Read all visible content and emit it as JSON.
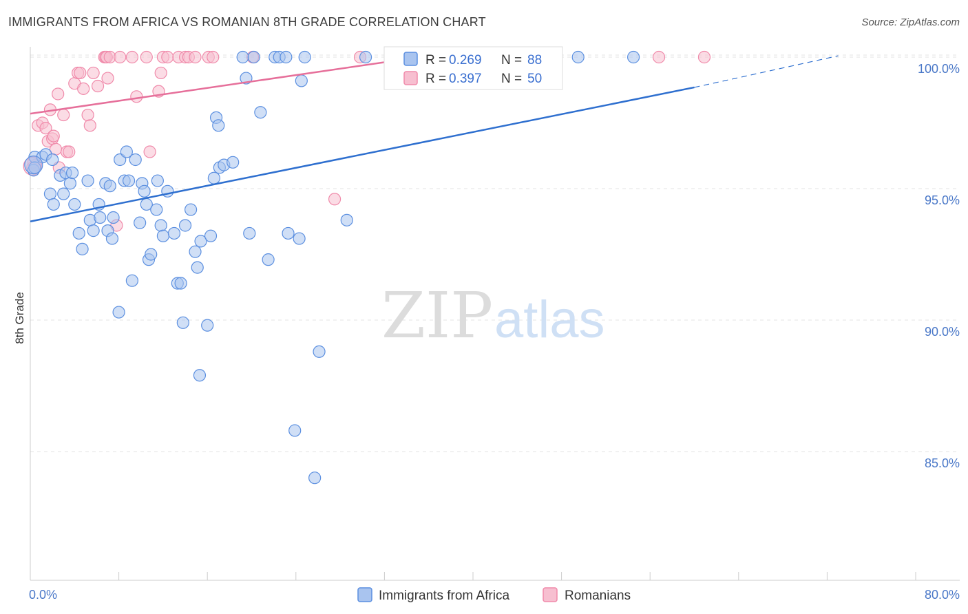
{
  "header": {
    "title": "IMMIGRANTS FROM AFRICA VS ROMANIAN 8TH GRADE CORRELATION CHART",
    "source": "Source: ZipAtlas.com"
  },
  "watermark": {
    "part1": "ZIP",
    "part2": "atlas"
  },
  "legend_top": {
    "rows": [
      {
        "r_label": "R = ",
        "r_value": "0.269",
        "n_label": "N = ",
        "n_value": "88",
        "color": "#5b8fe0"
      },
      {
        "r_label": "R = ",
        "r_value": "0.397",
        "n_label": "N = ",
        "n_value": "50",
        "color": "#f08aaa"
      }
    ]
  },
  "colors": {
    "blue_fill": "#a9c4ef",
    "blue_stroke": "#5b8fe0",
    "blue_line": "#2e6fcf",
    "pink_fill": "#f7bfd0",
    "pink_stroke": "#f08aaa",
    "pink_line": "#e66f9a",
    "grid": "#e3e3e3"
  },
  "chart_data": {
    "type": "scatter",
    "title": "IMMIGRANTS FROM AFRICA VS ROMANIAN 8TH GRADE CORRELATION CHART",
    "xlabel": "",
    "ylabel": "8th Grade",
    "xlim": [
      0,
      80
    ],
    "ylim": [
      80.5,
      101
    ],
    "x_tick_labels": [
      "0.0%",
      "80.0%"
    ],
    "y_ticks": [
      85,
      90,
      95,
      100
    ],
    "y_tick_labels": [
      "85.0%",
      "90.0%",
      "95.0%",
      "100.0%"
    ],
    "grid": true,
    "legend_position": "bottom",
    "series": [
      {
        "name": "Immigrants from Africa",
        "R": 0.269,
        "N": 88,
        "trend": {
          "x": [
            0,
            60
          ],
          "y": [
            93.75,
            98.85
          ],
          "dashed_to": [
            73,
            100.05
          ]
        },
        "points": [
          [
            0.3,
            95.7
          ],
          [
            0.4,
            96.2
          ],
          [
            0.4,
            95.8
          ],
          [
            1.1,
            96.2
          ],
          [
            1.4,
            96.3
          ],
          [
            2.0,
            96.1
          ],
          [
            1.8,
            94.8
          ],
          [
            2.1,
            94.4
          ],
          [
            2.7,
            95.5
          ],
          [
            3.0,
            94.8
          ],
          [
            3.2,
            95.6
          ],
          [
            3.6,
            95.2
          ],
          [
            3.8,
            95.6
          ],
          [
            4.0,
            94.4
          ],
          [
            4.4,
            93.3
          ],
          [
            4.7,
            92.7
          ],
          [
            5.2,
            95.3
          ],
          [
            5.4,
            93.8
          ],
          [
            5.7,
            93.4
          ],
          [
            6.2,
            94.4
          ],
          [
            6.3,
            93.9
          ],
          [
            6.8,
            95.2
          ],
          [
            7.0,
            93.4
          ],
          [
            7.2,
            95.1
          ],
          [
            7.4,
            93.1
          ],
          [
            7.5,
            93.9
          ],
          [
            8.1,
            96.1
          ],
          [
            8.0,
            90.3
          ],
          [
            8.5,
            95.3
          ],
          [
            8.7,
            96.4
          ],
          [
            8.9,
            95.3
          ],
          [
            9.2,
            91.5
          ],
          [
            9.5,
            96.1
          ],
          [
            9.9,
            93.7
          ],
          [
            10.1,
            95.2
          ],
          [
            10.3,
            94.9
          ],
          [
            10.5,
            94.4
          ],
          [
            10.7,
            92.3
          ],
          [
            10.9,
            92.5
          ],
          [
            11.4,
            94.2
          ],
          [
            11.5,
            95.3
          ],
          [
            11.8,
            93.6
          ],
          [
            12.0,
            93.2
          ],
          [
            12.4,
            94.9
          ],
          [
            13.0,
            93.3
          ],
          [
            13.3,
            91.4
          ],
          [
            13.6,
            91.4
          ],
          [
            13.8,
            89.9
          ],
          [
            14.0,
            93.6
          ],
          [
            14.5,
            94.2
          ],
          [
            14.9,
            92.6
          ],
          [
            15.1,
            92.0
          ],
          [
            15.3,
            87.9
          ],
          [
            15.4,
            93.0
          ],
          [
            16.0,
            89.8
          ],
          [
            16.3,
            93.2
          ],
          [
            16.6,
            95.4
          ],
          [
            16.8,
            97.7
          ],
          [
            17.0,
            97.4
          ],
          [
            17.1,
            95.8
          ],
          [
            17.5,
            95.9
          ],
          [
            18.3,
            96.0
          ],
          [
            19.2,
            100.0
          ],
          [
            19.5,
            99.2
          ],
          [
            19.8,
            93.3
          ],
          [
            20.2,
            100.0
          ],
          [
            20.8,
            97.9
          ],
          [
            21.5,
            92.3
          ],
          [
            22.1,
            100.0
          ],
          [
            22.5,
            100.0
          ],
          [
            23.1,
            100.0
          ],
          [
            23.3,
            93.3
          ],
          [
            23.9,
            85.8
          ],
          [
            24.3,
            93.1
          ],
          [
            24.5,
            99.1
          ],
          [
            24.8,
            100.0
          ],
          [
            25.7,
            84.0
          ],
          [
            26.1,
            88.8
          ],
          [
            28.6,
            93.8
          ],
          [
            30.3,
            100.0
          ],
          [
            33.4,
            100.0
          ],
          [
            33.8,
            100.0
          ],
          [
            34.1,
            100.0
          ],
          [
            34.7,
            100.0
          ],
          [
            39.3,
            100.0
          ],
          [
            41.5,
            100.0
          ],
          [
            49.5,
            100.0
          ],
          [
            54.5,
            100.0
          ]
        ]
      },
      {
        "name": "Romanians",
        "R": 0.397,
        "N": 50,
        "trend": {
          "x": [
            0,
            35.5
          ],
          "y": [
            97.85,
            100.02
          ]
        },
        "points": [
          [
            0.2,
            95.8
          ],
          [
            0.3,
            96.0
          ],
          [
            0.5,
            95.9
          ],
          [
            0.7,
            97.4
          ],
          [
            1.1,
            97.5
          ],
          [
            1.4,
            97.3
          ],
          [
            1.6,
            96.8
          ],
          [
            1.8,
            98.0
          ],
          [
            2.0,
            96.9
          ],
          [
            2.1,
            97.0
          ],
          [
            2.3,
            96.5
          ],
          [
            2.5,
            98.6
          ],
          [
            2.6,
            95.8
          ],
          [
            3.0,
            97.8
          ],
          [
            3.3,
            96.4
          ],
          [
            3.5,
            96.4
          ],
          [
            4.0,
            99.0
          ],
          [
            4.3,
            99.4
          ],
          [
            4.5,
            99.4
          ],
          [
            4.8,
            98.8
          ],
          [
            5.2,
            97.8
          ],
          [
            5.4,
            97.4
          ],
          [
            5.7,
            99.4
          ],
          [
            6.1,
            98.9
          ],
          [
            6.7,
            100.0
          ],
          [
            6.8,
            100.0
          ],
          [
            6.9,
            100.0
          ],
          [
            7.0,
            99.2
          ],
          [
            7.2,
            100.0
          ],
          [
            7.8,
            93.6
          ],
          [
            8.1,
            100.0
          ],
          [
            9.2,
            100.0
          ],
          [
            9.6,
            98.5
          ],
          [
            10.5,
            100.0
          ],
          [
            10.8,
            96.4
          ],
          [
            11.6,
            98.7
          ],
          [
            11.8,
            99.4
          ],
          [
            12.0,
            100.0
          ],
          [
            12.4,
            100.0
          ],
          [
            13.4,
            100.0
          ],
          [
            14.0,
            100.0
          ],
          [
            14.3,
            100.0
          ],
          [
            14.9,
            100.0
          ],
          [
            16.1,
            100.0
          ],
          [
            16.5,
            100.0
          ],
          [
            20.1,
            100.0
          ],
          [
            27.5,
            94.6
          ],
          [
            29.8,
            100.0
          ],
          [
            56.8,
            100.0
          ],
          [
            60.9,
            100.0
          ]
        ]
      }
    ]
  }
}
